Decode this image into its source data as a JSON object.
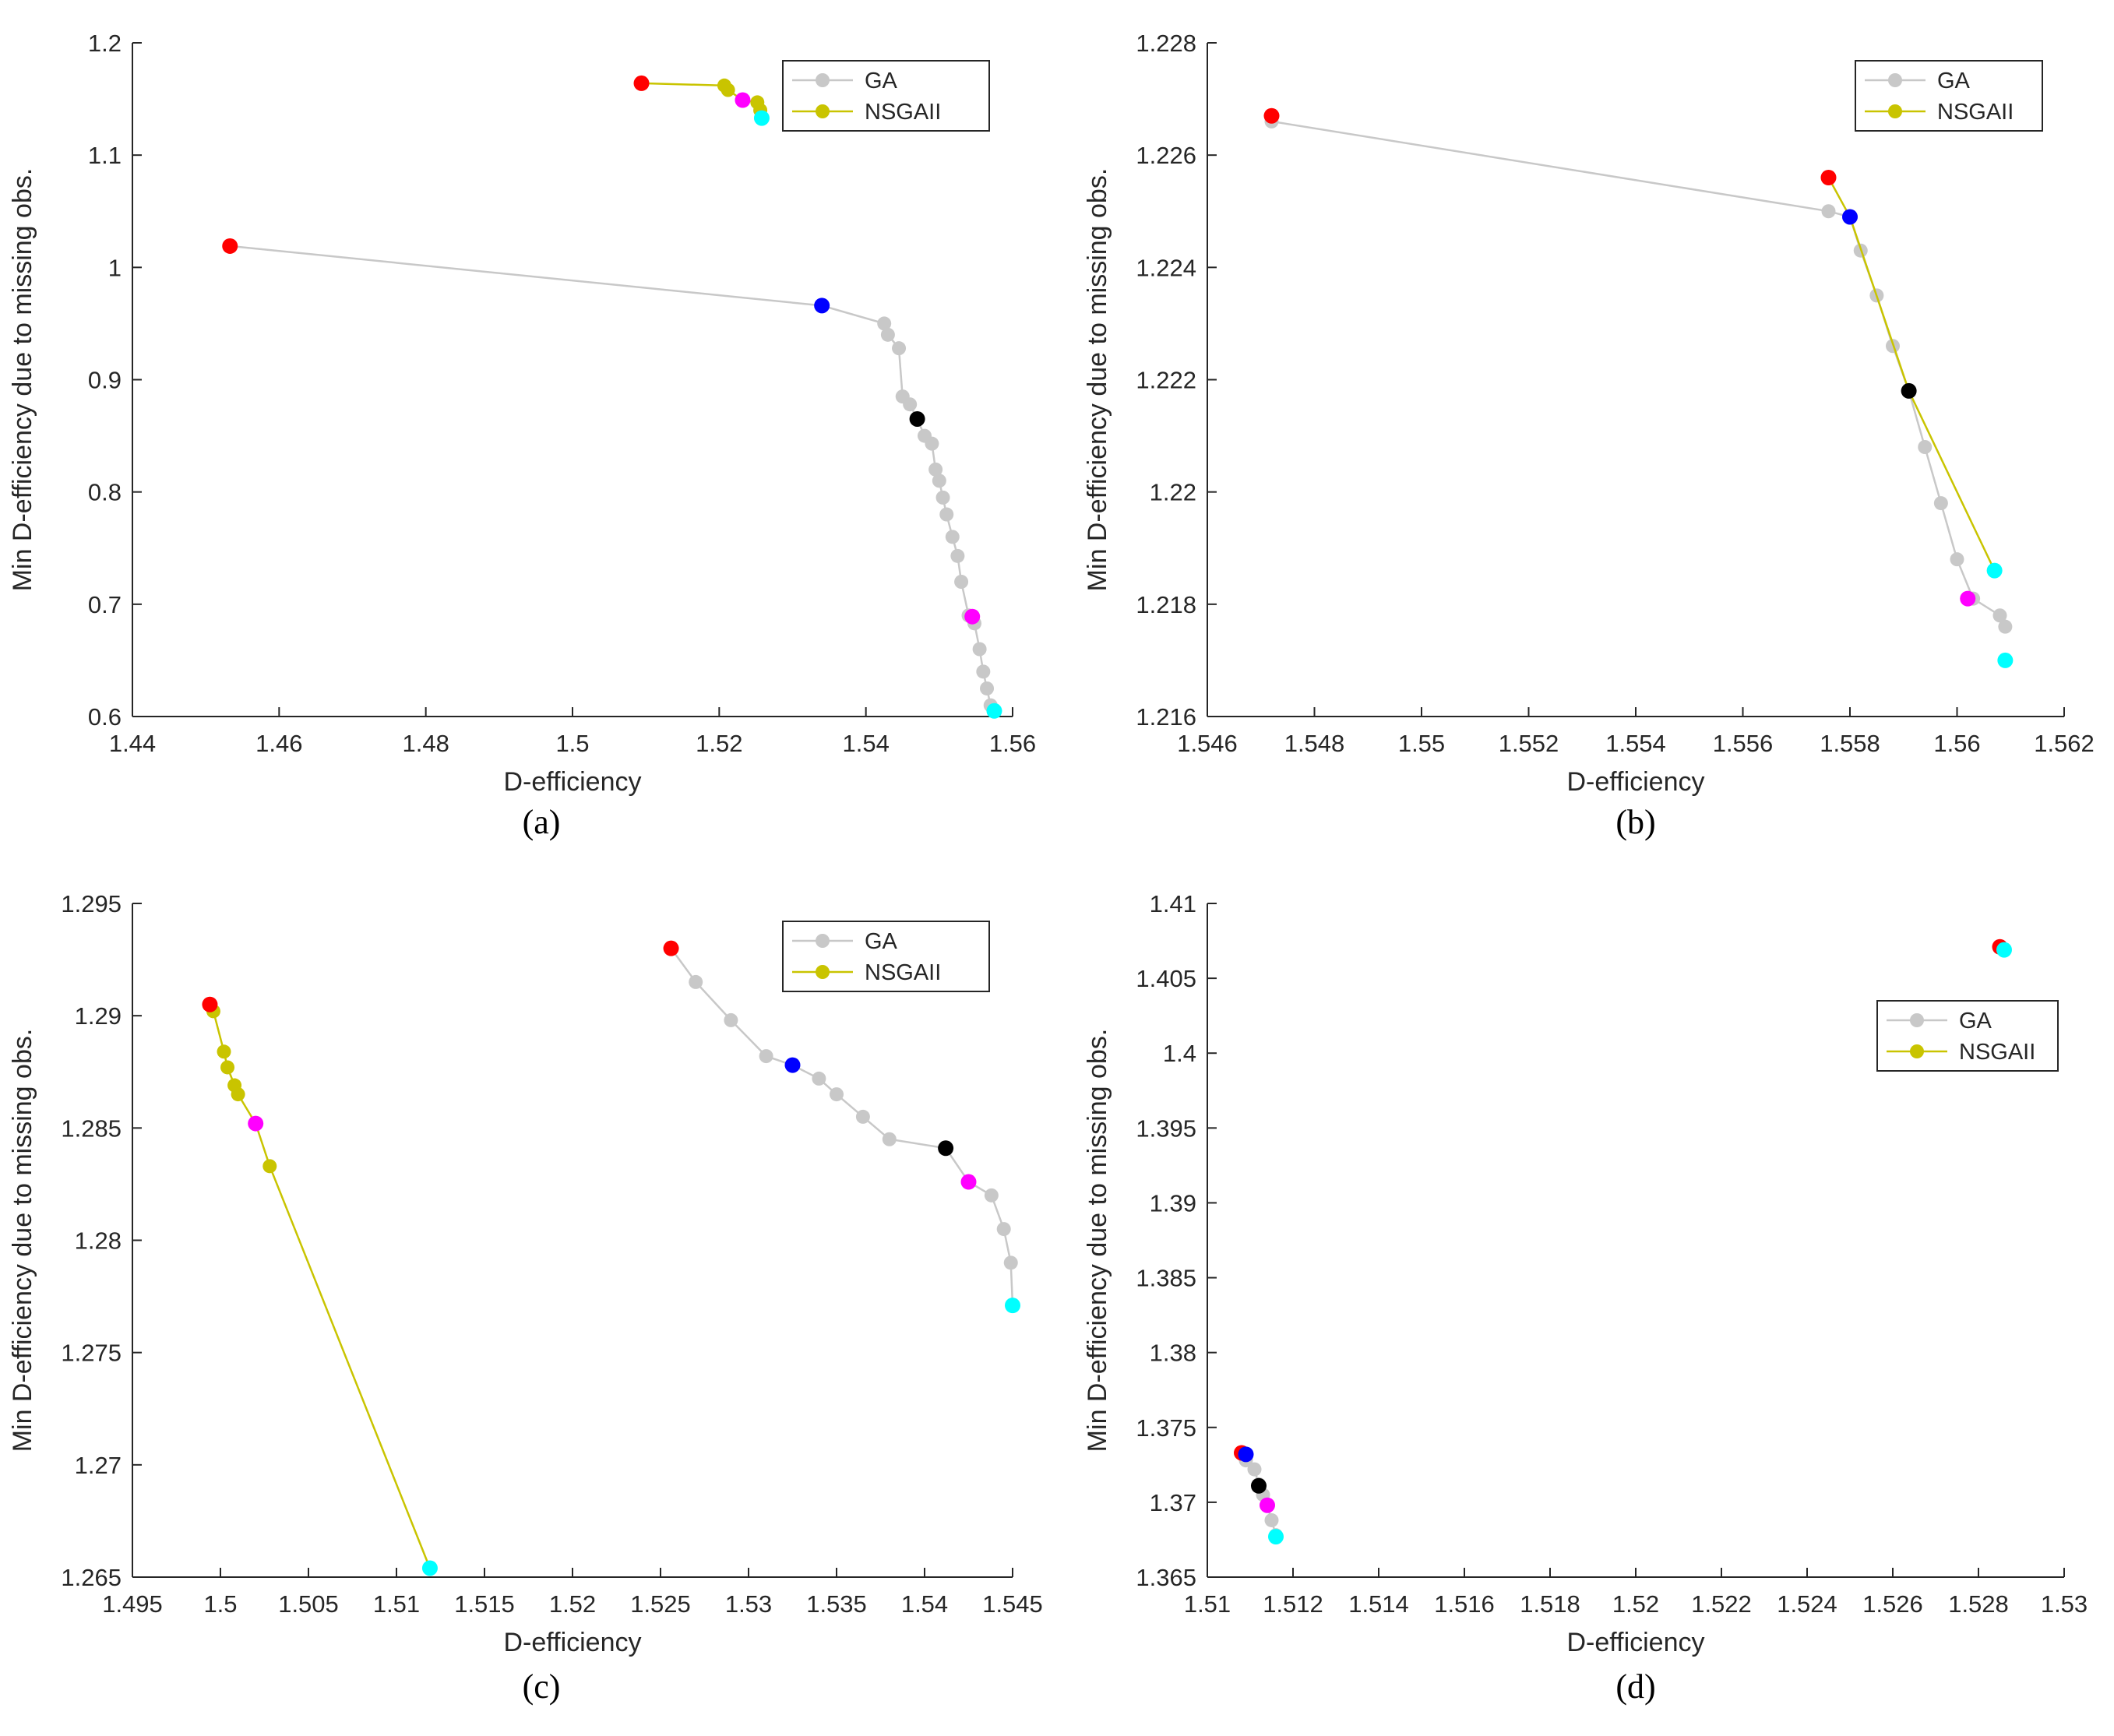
{
  "colors": {
    "ga": "#c8c8c8",
    "nsgaii": "#c9c400",
    "red": "#ff0000",
    "blue": "#0000ff",
    "black": "#000000",
    "magenta": "#ff00ff",
    "cyan": "#00ffff",
    "axis": "#262626"
  },
  "chart_data": [
    {
      "type": "scatter",
      "caption": "(a)",
      "xlabel": "D-efficiency",
      "ylabel": "Min D-efficiency due to missing obs.",
      "xlim": [
        1.44,
        1.56
      ],
      "ylim": [
        0.6,
        1.2
      ],
      "xticks": [
        "1.44",
        "1.46",
        "1.48",
        "1.5",
        "1.52",
        "1.54",
        "1.56"
      ],
      "yticks": [
        "0.6",
        "0.7",
        "0.8",
        "0.9",
        "1",
        "1.1",
        "1.2"
      ],
      "legend": {
        "placement": "top-right",
        "entries": [
          "GA",
          "NSGAII"
        ]
      },
      "series": [
        {
          "name": "GA",
          "color": "ga",
          "x": [
            1.4533,
            1.534,
            1.5425,
            1.543,
            1.5445,
            1.545,
            1.546,
            1.547,
            1.548,
            1.549,
            1.5495,
            1.55,
            1.5505,
            1.551,
            1.5518,
            1.5525,
            1.553,
            1.554,
            1.5548,
            1.5555,
            1.556,
            1.5565,
            1.557,
            1.5575
          ],
          "y": [
            1.019,
            0.966,
            0.95,
            0.94,
            0.928,
            0.885,
            0.878,
            0.865,
            0.85,
            0.843,
            0.82,
            0.81,
            0.795,
            0.78,
            0.76,
            0.743,
            0.72,
            0.69,
            0.683,
            0.66,
            0.64,
            0.625,
            0.61,
            0.605
          ]
        },
        {
          "name": "NSGAII",
          "color": "nsgaii",
          "x": [
            1.5094,
            1.5207,
            1.5212,
            1.5232,
            1.5252,
            1.5256,
            1.5258
          ],
          "y": [
            1.164,
            1.162,
            1.158,
            1.149,
            1.147,
            1.14,
            1.133
          ]
        }
      ],
      "highlights": [
        {
          "color": "red",
          "x": 1.4533,
          "y": 1.019
        },
        {
          "color": "blue",
          "x": 1.534,
          "y": 0.966
        },
        {
          "color": "black",
          "x": 1.547,
          "y": 0.865
        },
        {
          "color": "magenta",
          "x": 1.5545,
          "y": 0.689
        },
        {
          "color": "cyan",
          "x": 1.5575,
          "y": 0.605
        },
        {
          "color": "red",
          "x": 1.5094,
          "y": 1.164
        },
        {
          "color": "magenta",
          "x": 1.5232,
          "y": 1.149
        },
        {
          "color": "cyan",
          "x": 1.5258,
          "y": 1.133
        }
      ]
    },
    {
      "type": "scatter",
      "caption": "(b)",
      "xlabel": "D-efficiency",
      "ylabel": "Min D-efficiency due to missing obs.",
      "xlim": [
        1.546,
        1.562
      ],
      "ylim": [
        1.216,
        1.228
      ],
      "xticks": [
        "1.546",
        "1.548",
        "1.55",
        "1.552",
        "1.554",
        "1.556",
        "1.558",
        "1.56",
        "1.562"
      ],
      "yticks": [
        "1.216",
        "1.218",
        "1.22",
        "1.222",
        "1.224",
        "1.226",
        "1.228"
      ],
      "legend": {
        "placement": "top-right",
        "entries": [
          "GA",
          "NSGAII"
        ]
      },
      "series": [
        {
          "name": "GA",
          "color": "ga",
          "x": [
            1.5472,
            1.5576,
            1.558,
            1.5582,
            1.5585,
            1.5588,
            1.5591,
            1.5594,
            1.5597,
            1.56,
            1.5603,
            1.5608,
            1.5609
          ],
          "y": [
            1.2266,
            1.225,
            1.2249,
            1.2243,
            1.2235,
            1.2226,
            1.2218,
            1.2208,
            1.2198,
            1.2188,
            1.2181,
            1.2178,
            1.2176
          ]
        },
        {
          "name": "NSGAII",
          "color": "nsgaii",
          "x": [
            1.5576,
            1.558,
            1.5591,
            1.5607
          ],
          "y": [
            1.2256,
            1.2249,
            1.2218,
            1.2186
          ]
        }
      ],
      "highlights": [
        {
          "color": "red",
          "x": 1.5472,
          "y": 1.2267
        },
        {
          "color": "red",
          "x": 1.5576,
          "y": 1.2256
        },
        {
          "color": "blue",
          "x": 1.558,
          "y": 1.2249
        },
        {
          "color": "black",
          "x": 1.5591,
          "y": 1.2218
        },
        {
          "color": "magenta",
          "x": 1.5602,
          "y": 1.2181
        },
        {
          "color": "cyan",
          "x": 1.5607,
          "y": 1.2186
        },
        {
          "color": "cyan",
          "x": 1.5609,
          "y": 1.217
        }
      ]
    },
    {
      "type": "scatter",
      "caption": "(c)",
      "xlabel": "D-efficiency",
      "ylabel": "Min D-efficiency due to missing obs.",
      "xlim": [
        1.495,
        1.545
      ],
      "ylim": [
        1.265,
        1.295
      ],
      "xticks": [
        "1.495",
        "1.5",
        "1.505",
        "1.51",
        "1.515",
        "1.52",
        "1.525",
        "1.53",
        "1.535",
        "1.54",
        "1.545"
      ],
      "yticks": [
        "1.265",
        "1.27",
        "1.275",
        "1.28",
        "1.285",
        "1.29",
        "1.295"
      ],
      "legend": {
        "placement": "top-right",
        "entries": [
          "GA",
          "NSGAII"
        ]
      },
      "series": [
        {
          "name": "GA",
          "color": "ga",
          "x": [
            1.5256,
            1.527,
            1.529,
            1.531,
            1.5325,
            1.534,
            1.535,
            1.5365,
            1.538,
            1.5412,
            1.5425,
            1.5438,
            1.5445,
            1.5449,
            1.545
          ],
          "y": [
            1.293,
            1.2915,
            1.2898,
            1.2882,
            1.2878,
            1.2872,
            1.2865,
            1.2855,
            1.2845,
            1.2841,
            1.2826,
            1.282,
            1.2805,
            1.279,
            1.2771
          ]
        },
        {
          "name": "NSGAII",
          "color": "nsgaii",
          "x": [
            1.4994,
            1.4996,
            1.5002,
            1.5004,
            1.5008,
            1.501,
            1.502,
            1.5028,
            1.5119
          ],
          "y": [
            1.2905,
            1.2902,
            1.2884,
            1.2877,
            1.2869,
            1.2865,
            1.2852,
            1.2833,
            1.2654
          ]
        }
      ],
      "highlights": [
        {
          "color": "red",
          "x": 1.5256,
          "y": 1.293
        },
        {
          "color": "blue",
          "x": 1.5325,
          "y": 1.2878
        },
        {
          "color": "black",
          "x": 1.5412,
          "y": 1.2841
        },
        {
          "color": "magenta",
          "x": 1.5425,
          "y": 1.2826
        },
        {
          "color": "cyan",
          "x": 1.545,
          "y": 1.2771
        },
        {
          "color": "red",
          "x": 1.4994,
          "y": 1.2905
        },
        {
          "color": "magenta",
          "x": 1.502,
          "y": 1.2852
        },
        {
          "color": "cyan",
          "x": 1.5119,
          "y": 1.2654
        }
      ]
    },
    {
      "type": "scatter",
      "caption": "(d)",
      "xlabel": "D-efficiency",
      "ylabel": "Min D-efficiency due to missing obs.",
      "xlim": [
        1.51,
        1.53
      ],
      "ylim": [
        1.365,
        1.41
      ],
      "xticks": [
        "1.51",
        "1.512",
        "1.514",
        "1.516",
        "1.518",
        "1.52",
        "1.522",
        "1.524",
        "1.526",
        "1.528",
        "1.53"
      ],
      "yticks": [
        "1.365",
        "1.37",
        "1.375",
        "1.38",
        "1.385",
        "1.39",
        "1.395",
        "1.4",
        "1.405",
        "1.41"
      ],
      "legend": {
        "placement": "right",
        "entries": [
          "GA",
          "NSGAII"
        ]
      },
      "series": [
        {
          "name": "GA",
          "color": "ga",
          "x": [
            1.5108,
            1.5109,
            1.5111,
            1.5112,
            1.5113,
            1.5114,
            1.5115,
            1.5116
          ],
          "y": [
            1.3733,
            1.3728,
            1.3722,
            1.3712,
            1.3705,
            1.3698,
            1.3688,
            1.3678
          ]
        },
        {
          "name": "NSGAII",
          "color": "nsgaii",
          "x": [
            1.5285,
            1.5286
          ],
          "y": [
            1.4071,
            1.4069
          ]
        }
      ],
      "highlights": [
        {
          "color": "red",
          "x": 1.5108,
          "y": 1.3733
        },
        {
          "color": "blue",
          "x": 1.5109,
          "y": 1.3732
        },
        {
          "color": "black",
          "x": 1.5112,
          "y": 1.3711
        },
        {
          "color": "magenta",
          "x": 1.5114,
          "y": 1.3698
        },
        {
          "color": "cyan",
          "x": 1.5116,
          "y": 1.3677
        },
        {
          "color": "red",
          "x": 1.5285,
          "y": 1.4071
        },
        {
          "color": "cyan",
          "x": 1.5286,
          "y": 1.4069
        }
      ]
    }
  ]
}
